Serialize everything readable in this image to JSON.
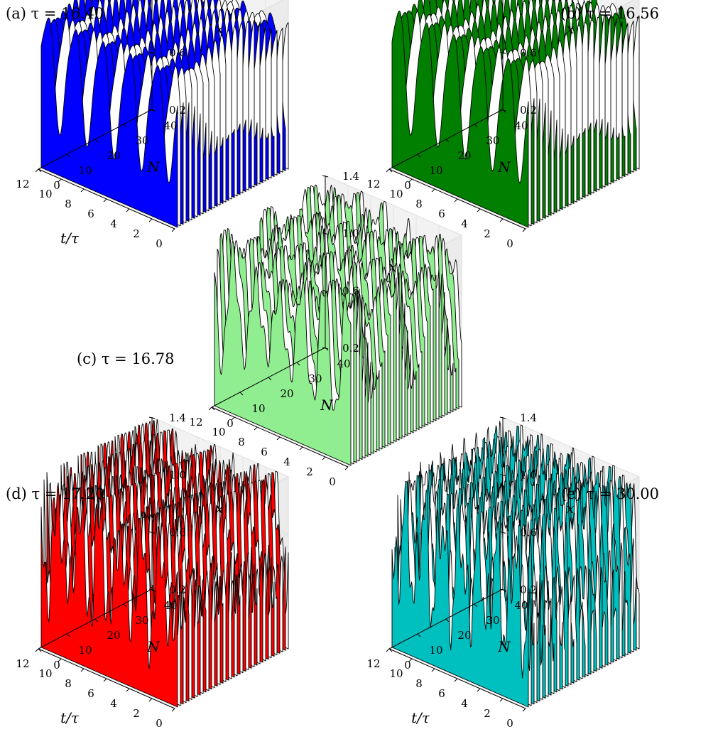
{
  "figure": {
    "panels": [
      {
        "id": "a",
        "label": "(a)",
        "tau_text": "τ = 16.40",
        "color": "#0000ff",
        "title_side": "left"
      },
      {
        "id": "b",
        "label": "(b)",
        "tau_text": "τ = 16.56",
        "color": "#007f00",
        "title_side": "right"
      },
      {
        "id": "c",
        "label": "(c)",
        "tau_text": "τ = 16.78",
        "color": "#90ee90",
        "title_side": "side"
      },
      {
        "id": "d",
        "label": "(d)",
        "tau_text": "τ = 17.20",
        "color": "#ff0000",
        "title_side": "left"
      },
      {
        "id": "e",
        "label": "(e)",
        "tau_text": "τ = 30.00",
        "color": "#00bfbf",
        "title_side": "right"
      }
    ]
  },
  "chart_data": [
    {
      "type": "area",
      "title": "(a) τ = 16.40",
      "xlabel": "t/τ",
      "ylabel": "N",
      "zlabel": "x",
      "x_ticks": [
        "0",
        "2",
        "4",
        "6",
        "8",
        "10",
        "12"
      ],
      "y_ticks": [
        "0",
        "10",
        "20",
        "30",
        "40"
      ],
      "z_ticks": [
        "0.2",
        "0.6",
        "1.0",
        "1.4"
      ],
      "xlim": [
        0,
        12
      ],
      "ylim": [
        0,
        40
      ],
      "zlim": [
        0.2,
        1.4
      ],
      "series_count": 40,
      "color": "#0000ff",
      "profile": "regular",
      "oscillation": {
        "period_t": 2.4,
        "min_x": 0.55,
        "max_x": 1.3
      }
    },
    {
      "type": "area",
      "title": "(b) τ = 16.56",
      "xlabel": "t/τ",
      "ylabel": "N",
      "zlabel": "x",
      "x_ticks": [
        "0",
        "2",
        "4",
        "6",
        "8",
        "10",
        "12"
      ],
      "y_ticks": [
        "0",
        "10",
        "20",
        "30",
        "40"
      ],
      "z_ticks": [
        "0.2",
        "0.6",
        "1.0",
        "1.4"
      ],
      "xlim": [
        0,
        12
      ],
      "ylim": [
        0,
        40
      ],
      "zlim": [
        0.2,
        1.4
      ],
      "series_count": 40,
      "color": "#007f00",
      "profile": "regular",
      "oscillation": {
        "period_t": 2.4,
        "min_x": 0.55,
        "max_x": 1.35
      }
    },
    {
      "type": "area",
      "title": "(c) τ = 16.78",
      "xlabel": "t/τ",
      "ylabel": "N",
      "zlabel": "x",
      "x_ticks": [
        "0",
        "2",
        "4",
        "6",
        "8",
        "10",
        "12"
      ],
      "y_ticks": [
        "0",
        "10",
        "20",
        "30",
        "40"
      ],
      "z_ticks": [
        "0.2",
        "0.6",
        "1.0",
        "1.4"
      ],
      "xlim": [
        0,
        12
      ],
      "ylim": [
        0,
        40
      ],
      "zlim": [
        0.2,
        1.4
      ],
      "series_count": 40,
      "color": "#90ee90",
      "profile": "modulated",
      "oscillation": {
        "period_t": 2.0,
        "min_x": 0.5,
        "max_x": 1.4
      }
    },
    {
      "type": "area",
      "title": "(d) τ = 17.20",
      "xlabel": "t/τ",
      "ylabel": "N",
      "zlabel": "x",
      "x_ticks": [
        "0",
        "2",
        "4",
        "6",
        "8",
        "10",
        "12"
      ],
      "y_ticks": [
        "0",
        "10",
        "20",
        "30",
        "40"
      ],
      "z_ticks": [
        "0.2",
        "0.6",
        "1.0",
        "1.4"
      ],
      "xlim": [
        0,
        12
      ],
      "ylim": [
        0,
        40
      ],
      "zlim": [
        0.2,
        1.4
      ],
      "series_count": 40,
      "color": "#ff0000",
      "profile": "irregular",
      "oscillation": {
        "period_t": 1.8,
        "min_x": 0.55,
        "max_x": 1.35
      }
    },
    {
      "type": "area",
      "title": "(e) τ = 30.00",
      "xlabel": "t/τ",
      "ylabel": "N",
      "zlabel": "x",
      "x_ticks": [
        "0",
        "2",
        "4",
        "6",
        "8",
        "10",
        "12"
      ],
      "y_ticks": [
        "0",
        "10",
        "20",
        "30",
        "40"
      ],
      "z_ticks": [
        "0.2",
        "0.6",
        "1.0",
        "1.4"
      ],
      "xlim": [
        0,
        12
      ],
      "ylim": [
        0,
        40
      ],
      "zlim": [
        0.2,
        1.4
      ],
      "series_count": 40,
      "color": "#00bfbf",
      "profile": "chaotic",
      "oscillation": {
        "period_t": 1.6,
        "min_x": 0.5,
        "max_x": 1.4
      }
    }
  ]
}
